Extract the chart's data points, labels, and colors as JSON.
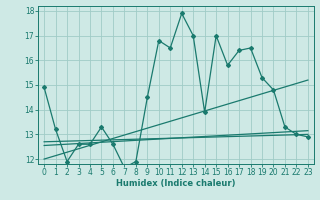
{
  "xlabel": "Humidex (Indice chaleur)",
  "xlim": [
    -0.5,
    23.5
  ],
  "ylim": [
    11.8,
    18.2
  ],
  "yticks": [
    12,
    13,
    14,
    15,
    16,
    17,
    18
  ],
  "xticks": [
    0,
    1,
    2,
    3,
    4,
    5,
    6,
    7,
    8,
    9,
    10,
    11,
    12,
    13,
    14,
    15,
    16,
    17,
    18,
    19,
    20,
    21,
    22,
    23
  ],
  "bg_color": "#cee9e5",
  "grid_color": "#a0ccc7",
  "line_color": "#1a7a6e",
  "series1_x": [
    0,
    1,
    2,
    3,
    4,
    5,
    6,
    7,
    8,
    9,
    10,
    11,
    12,
    13,
    14,
    15,
    16,
    17,
    18,
    19,
    20,
    21,
    22,
    23
  ],
  "series1_y": [
    14.9,
    13.2,
    11.9,
    12.6,
    12.6,
    13.3,
    12.6,
    11.65,
    11.9,
    14.5,
    16.8,
    16.5,
    17.9,
    17.0,
    13.9,
    17.0,
    15.8,
    16.4,
    16.5,
    15.3,
    14.8,
    13.3,
    13.0,
    12.9
  ],
  "trend1_x": [
    0,
    23
  ],
  "trend1_y": [
    12.55,
    13.15
  ],
  "trend2_x": [
    0,
    23
  ],
  "trend2_y": [
    12.0,
    15.2
  ],
  "trend3_x": [
    0,
    23
  ],
  "trend3_y": [
    12.7,
    13.0
  ]
}
